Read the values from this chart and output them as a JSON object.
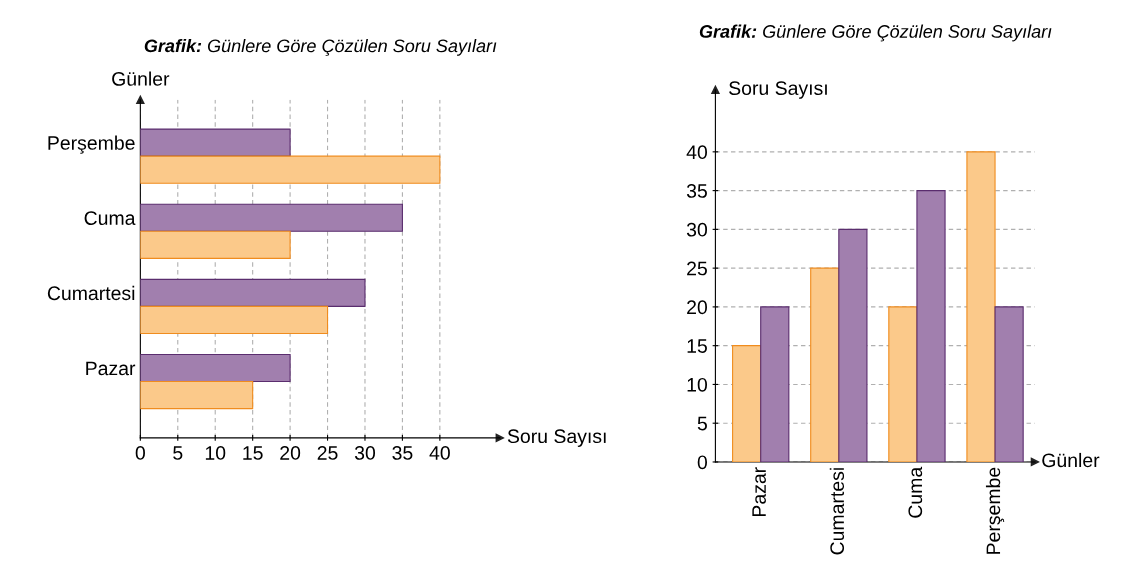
{
  "chart_data": [
    {
      "type": "bar",
      "orientation": "horizontal",
      "title": "Grafik: Günlere Göre Çözülen Soru Sayıları",
      "xlabel": "Soru Sayısı",
      "ylabel": "Günler",
      "categories": [
        "Perşembe",
        "Cuma",
        "Cumartesi",
        "Pazar"
      ],
      "series": [
        {
          "color": "#a17fae",
          "values": [
            20,
            35,
            30,
            20
          ]
        },
        {
          "color": "#fbc98a",
          "values": [
            40,
            20,
            25,
            15
          ]
        }
      ],
      "xlim": [
        0,
        48
      ],
      "xticks": [
        0,
        5,
        10,
        15,
        20,
        25,
        30,
        35,
        40
      ],
      "grid": "x",
      "legend": false
    },
    {
      "type": "bar",
      "title": "Grafik: Günlere Göre Çözülen Soru Sayıları",
      "xlabel": "Günler",
      "ylabel": "Soru Sayısı",
      "categories": [
        "Pazar",
        "Cumartesi",
        "Cuma",
        "Perşembe"
      ],
      "series": [
        {
          "color": "#fbc98a",
          "values": [
            15,
            25,
            20,
            40
          ]
        },
        {
          "color": "#a17fae",
          "values": [
            20,
            30,
            35,
            20
          ]
        }
      ],
      "ylim": [
        0,
        48
      ],
      "yticks": [
        0,
        5,
        10,
        15,
        20,
        25,
        30,
        35,
        40
      ],
      "grid": "y",
      "legend": false
    }
  ]
}
